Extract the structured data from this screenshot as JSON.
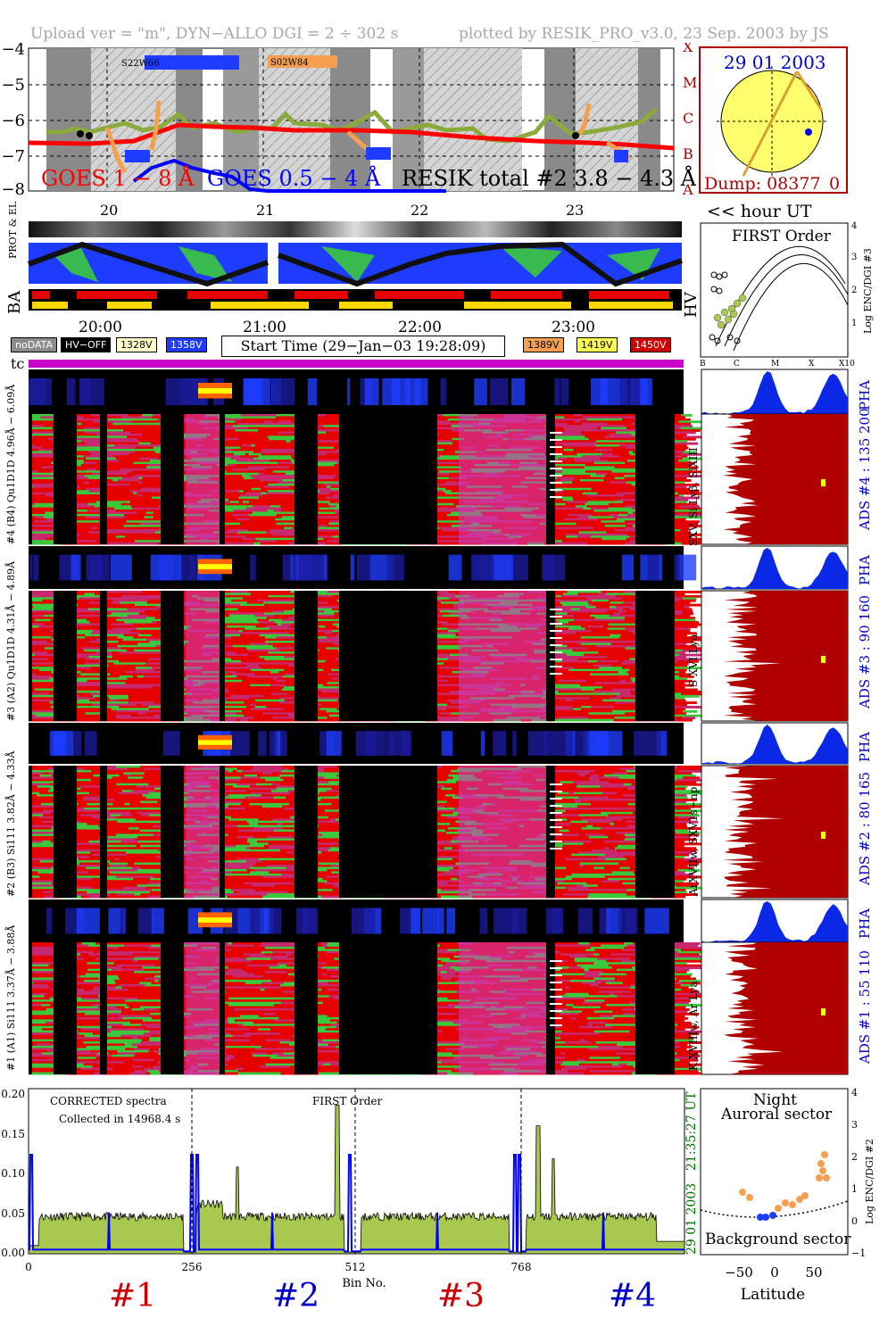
{
  "header": {
    "left": "Upload ver = \"m\", DYN−ALLO DGI =   2 ÷ 302 s",
    "right": "plotted by RESIK_PRO_v3.0, 23 Sep. 2003 by JS"
  },
  "goes_panel": {
    "goes_long": "GOES 1 − 8 Å",
    "goes_short": "GOES 0.5 − 4 Å",
    "resik": "RESIK total #2  3.8 − 4.3 Å",
    "region1": "S22W66",
    "region2": "S02W84",
    "yticks": [
      "−4",
      "−5",
      "−6",
      "−7",
      "−8"
    ],
    "classes": [
      "X",
      "M",
      "C",
      "B",
      "A"
    ]
  },
  "sun_panel": {
    "date": "29 01 2003",
    "dump": "Dump: 08377_0"
  },
  "hour_axis": {
    "ticks": [
      "20",
      "21",
      "22",
      "23"
    ],
    "label": "<< hour UT"
  },
  "orbit_labels": {
    "prot": "PROT & EL",
    "ba": "BA",
    "hv": "HV"
  },
  "time_axis": {
    "ticks": [
      "20:00",
      "21:00",
      "22:00",
      "23:00"
    ]
  },
  "legend": {
    "nodata": "noDATA",
    "hvoff": "HV−OFF",
    "v1328": "1328V",
    "v1358": "1358V",
    "start_time": "Start Time (29−Jan−03 19:28:09)",
    "v1389": "1389V",
    "v1419": "1419V",
    "v1450": "1450V"
  },
  "tc_label": "tc",
  "first_order": {
    "title": "FIRST Order",
    "xticks": [
      "B",
      "C",
      "M",
      "X",
      "X10"
    ],
    "yticks": [
      "1",
      "2",
      "3",
      "4"
    ],
    "ylabel": "Log ENC/DGI #3"
  },
  "channels": [
    {
      "pha_label": "#4 (B4) Qu1D1D 4.96Å − 6.09Å",
      "ads": "ADS #4 :   135 200",
      "line": "SXV, Si Lyβ, SiXIII"
    },
    {
      "pha_label": "#3 (A2) Qu1D1D 4.31Å − 4.89Å",
      "ads": "ADS #3 :    90 160",
      "line": "S XVI Lya"
    },
    {
      "pha_label": "#2 (B3) Si111 3.82Å − 4.33Å",
      "ads": "ADS #2 :    80 165",
      "line": "ArXVIIw, SXV1s−np"
    },
    {
      "pha_label": "#1 (A1) Si111 3.37Å − 3.88Å",
      "ads": "ADS #1 :    55 110",
      "line": "K XVIIIw, Ar Lya"
    }
  ],
  "pha": "PHA",
  "spectra": {
    "text1": "CORRECTED spectra",
    "text2": "Collected in 14968.4 s",
    "text3": "FIRST Order",
    "yticks": [
      "0.00",
      "0.05",
      "0.10",
      "0.15",
      "0.20"
    ],
    "xticks": [
      "0",
      "256",
      "512",
      "768"
    ],
    "xlabel": "Bin No.",
    "timestamp": "21:35:27 UT",
    "date": "29 01 2003",
    "sections": [
      "#1",
      "#2",
      "#3",
      "#4"
    ]
  },
  "latitude_panel": {
    "title1": "Night",
    "title2": "Auroral sector",
    "bottom": "Background sector",
    "xlabel": "Latitude",
    "xticks": [
      "−50",
      "0",
      "50"
    ],
    "yticks": [
      "−1",
      "0",
      "1",
      "2",
      "3",
      "4"
    ],
    "ylabel": "Log ENC/DGI #2"
  },
  "colors": {
    "goes_long": "#ff0000",
    "goes_short": "#0000ff",
    "resik": "#000000",
    "orbit_blue": "#1e3cff",
    "orbit_green": "#3cc83c",
    "spec_fill": "#a8c850",
    "ads_fill": "#b00000",
    "pha_fill": "#0a28e6",
    "dot_orange": "#f5a050",
    "magenta": "#c800c8"
  }
}
